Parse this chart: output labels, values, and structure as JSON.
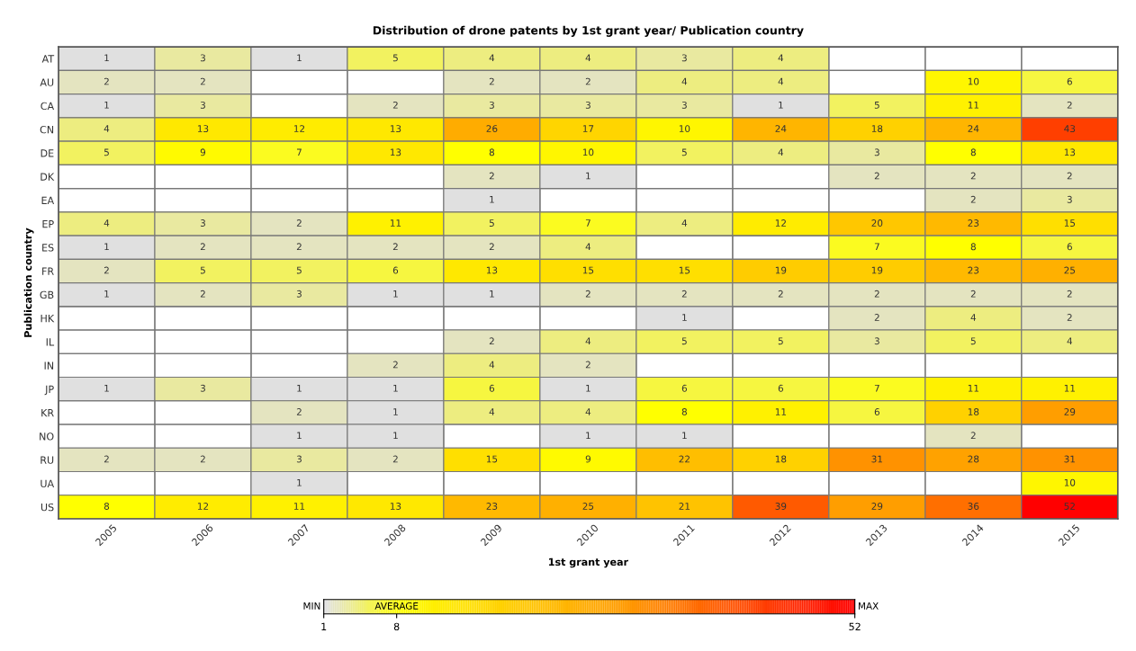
{
  "chart_data": {
    "type": "heatmap",
    "title": "Distribution of drone patents by 1st grant year/ Publication country",
    "xlabel": "1st grant year",
    "ylabel": "Publication country",
    "categories": [
      "2005",
      "2006",
      "2007",
      "2008",
      "2009",
      "2010",
      "2011",
      "2012",
      "2013",
      "2014",
      "2015"
    ],
    "y_categories": [
      "AT",
      "AU",
      "CA",
      "CN",
      "DE",
      "DK",
      "EA",
      "EP",
      "ES",
      "FR",
      "GB",
      "HK",
      "IL",
      "IN",
      "JP",
      "KR",
      "NO",
      "RU",
      "UA",
      "US"
    ],
    "cells": [
      [
        1,
        3,
        1,
        5,
        4,
        4,
        3,
        4,
        null,
        null,
        null
      ],
      [
        2,
        2,
        null,
        null,
        2,
        2,
        4,
        4,
        null,
        10,
        6
      ],
      [
        1,
        3,
        null,
        2,
        3,
        3,
        3,
        1,
        5,
        11,
        2
      ],
      [
        4,
        13,
        12,
        13,
        26,
        17,
        10,
        24,
        18,
        24,
        43
      ],
      [
        5,
        9,
        7,
        13,
        8,
        10,
        5,
        4,
        3,
        8,
        13
      ],
      [
        null,
        null,
        null,
        null,
        2,
        1,
        null,
        null,
        2,
        2,
        2
      ],
      [
        null,
        null,
        null,
        null,
        1,
        null,
        null,
        null,
        null,
        2,
        3
      ],
      [
        4,
        3,
        2,
        11,
        5,
        7,
        4,
        12,
        20,
        23,
        15
      ],
      [
        1,
        2,
        2,
        2,
        2,
        4,
        null,
        null,
        7,
        8,
        6
      ],
      [
        2,
        5,
        5,
        6,
        13,
        15,
        15,
        19,
        19,
        23,
        25
      ],
      [
        1,
        2,
        3,
        1,
        1,
        2,
        2,
        2,
        2,
        2,
        2
      ],
      [
        null,
        null,
        null,
        null,
        null,
        null,
        1,
        null,
        2,
        4,
        2
      ],
      [
        null,
        null,
        null,
        null,
        2,
        4,
        5,
        5,
        3,
        5,
        4
      ],
      [
        null,
        null,
        null,
        2,
        4,
        2,
        null,
        null,
        null,
        null,
        null
      ],
      [
        1,
        3,
        1,
        1,
        6,
        1,
        6,
        6,
        7,
        11,
        11
      ],
      [
        null,
        null,
        2,
        1,
        4,
        4,
        8,
        11,
        6,
        18,
        29
      ],
      [
        null,
        null,
        1,
        1,
        null,
        1,
        1,
        null,
        null,
        2,
        null
      ],
      [
        2,
        2,
        3,
        2,
        15,
        9,
        22,
        18,
        31,
        28,
        31
      ],
      [
        null,
        null,
        1,
        null,
        null,
        null,
        null,
        null,
        null,
        null,
        10
      ],
      [
        8,
        12,
        11,
        13,
        23,
        25,
        21,
        39,
        29,
        36,
        52
      ]
    ],
    "data_labels": true,
    "clim": [
      1,
      52
    ],
    "cticks": [
      1,
      8,
      52
    ],
    "colors": [
      "#e0e0e0",
      "#ffff00",
      "#ff9900",
      "#ff0000"
    ],
    "grid": true,
    "annotations": [
      "MIN",
      "AVERAGE",
      "MAX"
    ]
  }
}
